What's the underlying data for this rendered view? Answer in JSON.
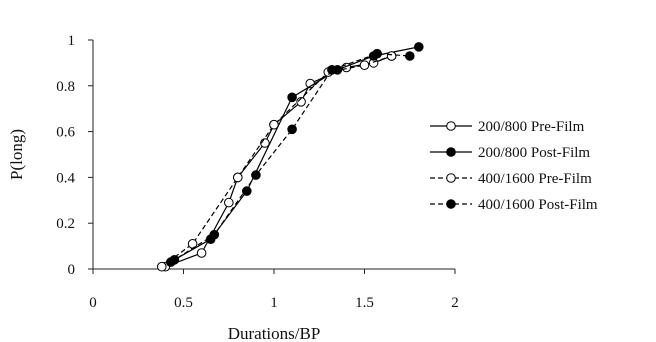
{
  "chart_data": {
    "type": "line",
    "xlabel": "Durations/BP",
    "ylabel": "P(long)",
    "xlim": [
      0,
      2
    ],
    "ylim": [
      0,
      1
    ],
    "x_ticks": [
      "0",
      "0.5",
      "1",
      "1.5",
      "2"
    ],
    "y_ticks": [
      "0",
      "0.2",
      "0.4",
      "0.6",
      "0.8",
      "1"
    ],
    "grid": false,
    "legend_position": "right",
    "series": [
      {
        "name": "200/800 Pre-Film",
        "line": "solid",
        "marker": "open",
        "points": [
          [
            0.4,
            0.01
          ],
          [
            0.6,
            0.07
          ],
          [
            0.75,
            0.29
          ],
          [
            0.8,
            0.4
          ],
          [
            0.95,
            0.55
          ],
          [
            1.0,
            0.63
          ],
          [
            1.15,
            0.73
          ],
          [
            1.2,
            0.81
          ],
          [
            1.4,
            0.88
          ],
          [
            1.55,
            0.9
          ],
          [
            1.65,
            0.93
          ]
        ]
      },
      {
        "name": "200/800 Post-Film",
        "line": "solid",
        "marker": "filled",
        "points": [
          [
            0.45,
            0.04
          ],
          [
            0.65,
            0.13
          ],
          [
            0.85,
            0.34
          ],
          [
            1.1,
            0.75
          ],
          [
            1.35,
            0.87
          ],
          [
            1.55,
            0.93
          ],
          [
            1.8,
            0.97
          ]
        ]
      },
      {
        "name": "400/1600 Pre-Film",
        "line": "dashed",
        "marker": "open",
        "points": [
          [
            0.38,
            0.01
          ],
          [
            0.55,
            0.11
          ],
          [
            0.8,
            0.4
          ],
          [
            1.0,
            0.63
          ],
          [
            1.3,
            0.86
          ],
          [
            1.5,
            0.89
          ],
          [
            1.65,
            0.93
          ]
        ]
      },
      {
        "name": "400/1600 Post-Film",
        "line": "dashed",
        "marker": "filled",
        "points": [
          [
            0.43,
            0.03
          ],
          [
            0.67,
            0.15
          ],
          [
            0.9,
            0.41
          ],
          [
            1.1,
            0.61
          ],
          [
            1.32,
            0.87
          ],
          [
            1.57,
            0.94
          ],
          [
            1.75,
            0.93
          ]
        ]
      }
    ]
  }
}
